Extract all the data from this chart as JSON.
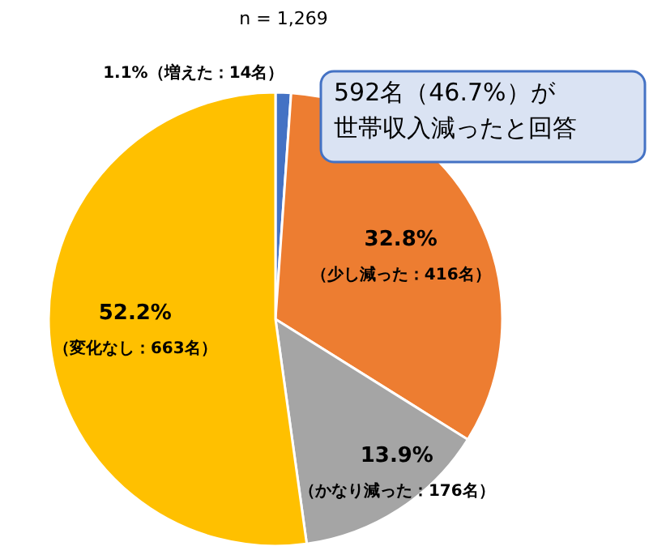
{
  "chart_data": {
    "type": "pie",
    "categories": [
      "（増えた：14名）",
      "（少し減った：416名）",
      "（かなり減った：176名）",
      "（変化なし：663名）"
    ],
    "values": [
      1.1,
      32.8,
      13.9,
      52.2
    ],
    "value_labels": [
      "1.1%",
      "32.8%",
      "13.9%",
      "52.2%"
    ],
    "colors": [
      "#4472c4",
      "#ed7d31",
      "#a5a5a5",
      "#ffc000"
    ],
    "annotations": [
      "n = 1,269",
      "592名（46.7%）が",
      "世帯収入減ったと回答"
    ]
  }
}
